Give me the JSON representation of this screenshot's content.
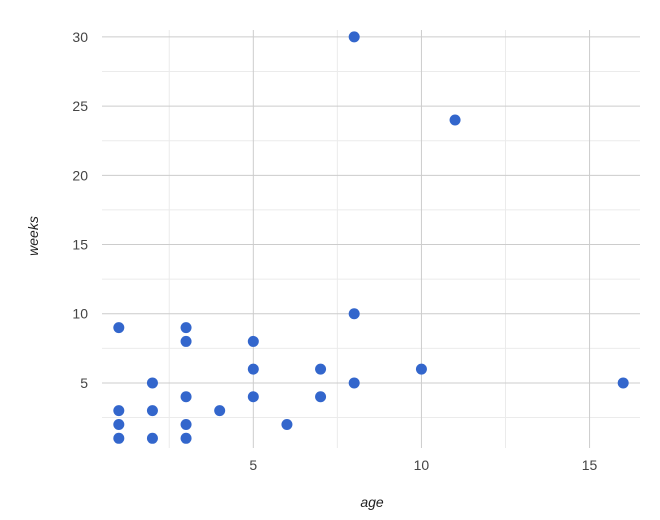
{
  "chart_data": {
    "type": "scatter",
    "title": "",
    "xlabel": "age",
    "ylabel": "weeks",
    "xlim": [
      0.5,
      16.5
    ],
    "ylim": [
      0.3,
      30.5
    ],
    "x_ticks": [
      5,
      10,
      15
    ],
    "x_minor_ticks": [
      2.5,
      7.5,
      12.5
    ],
    "y_ticks": [
      5,
      10,
      15,
      20,
      25,
      30
    ],
    "y_minor_ticks": [
      2.5,
      7.5,
      12.5,
      17.5,
      22.5,
      27.5
    ],
    "grid": true,
    "legend": "none",
    "point_color": "#3366cc",
    "points": [
      {
        "x": 1,
        "y": 9
      },
      {
        "x": 1,
        "y": 3
      },
      {
        "x": 1,
        "y": 2
      },
      {
        "x": 1,
        "y": 1
      },
      {
        "x": 2,
        "y": 5
      },
      {
        "x": 2,
        "y": 3
      },
      {
        "x": 2,
        "y": 1
      },
      {
        "x": 3,
        "y": 9
      },
      {
        "x": 3,
        "y": 8
      },
      {
        "x": 3,
        "y": 4
      },
      {
        "x": 3,
        "y": 2
      },
      {
        "x": 3,
        "y": 1
      },
      {
        "x": 4,
        "y": 3
      },
      {
        "x": 5,
        "y": 8
      },
      {
        "x": 5,
        "y": 6
      },
      {
        "x": 5,
        "y": 4
      },
      {
        "x": 6,
        "y": 2
      },
      {
        "x": 7,
        "y": 6
      },
      {
        "x": 7,
        "y": 4
      },
      {
        "x": 8,
        "y": 30
      },
      {
        "x": 8,
        "y": 10
      },
      {
        "x": 8,
        "y": 5
      },
      {
        "x": 10,
        "y": 6
      },
      {
        "x": 11,
        "y": 24
      },
      {
        "x": 16,
        "y": 5
      }
    ]
  }
}
